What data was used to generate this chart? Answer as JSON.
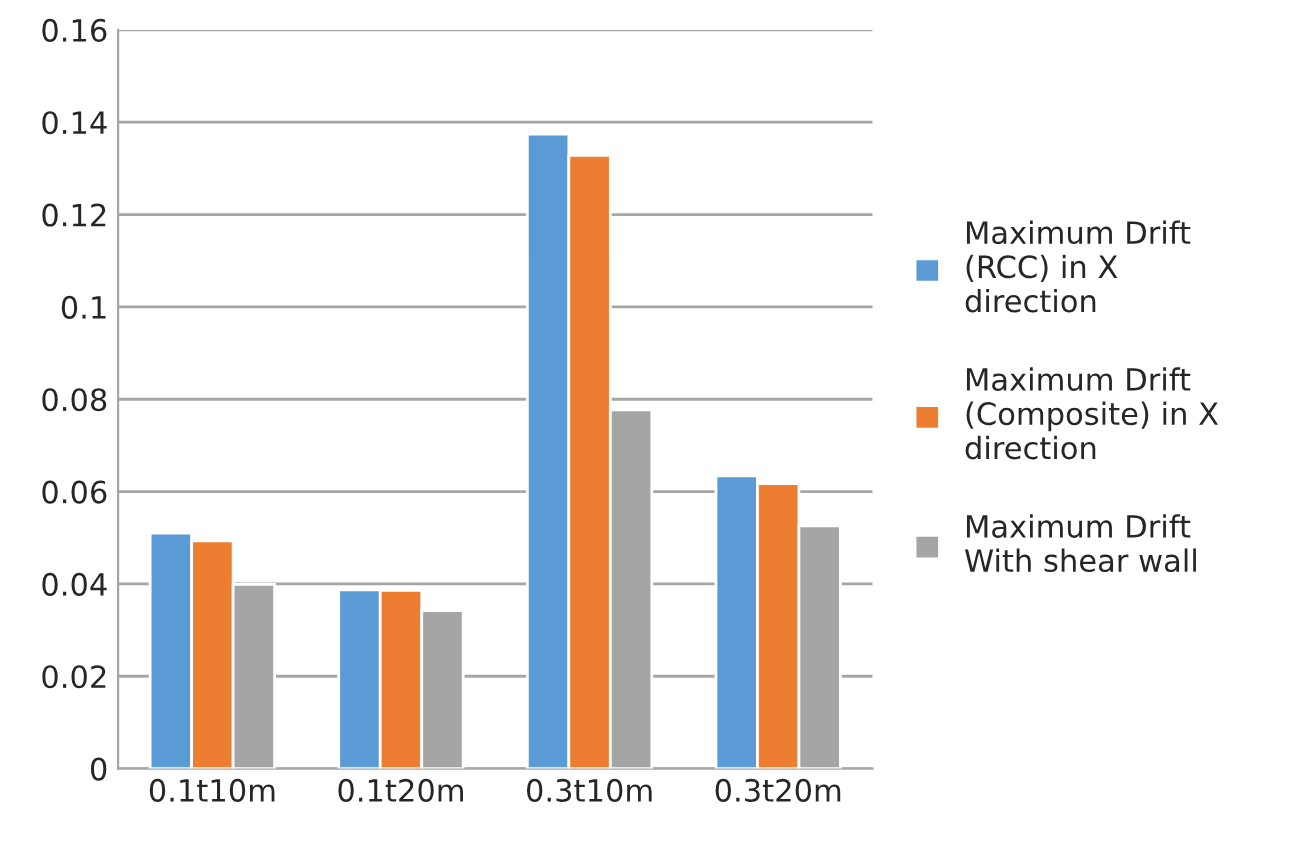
{
  "chart_data": {
    "type": "bar",
    "categories": [
      "0.1t10m",
      "0.1t20m",
      "0.3t10m",
      "0.3t20m"
    ],
    "series": [
      {
        "name": "Maximum Drift\n(RCC) in X\ndirection",
        "color": "#5b9bd5",
        "values": [
          0.051,
          0.0387,
          0.1374,
          0.0634
        ]
      },
      {
        "name": "Maximum Drift\n(Composite) in X\ndirection",
        "color": "#ed7d31",
        "values": [
          0.0493,
          0.0386,
          0.1328,
          0.0617
        ]
      },
      {
        "name": "Maximum Drift\nWith shear wall",
        "color": "#a5a5a5",
        "values": [
          0.0399,
          0.0342,
          0.0777,
          0.0526
        ]
      }
    ],
    "ylim": [
      0,
      0.16
    ],
    "yticks": [
      0,
      0.02,
      0.04,
      0.06,
      0.08,
      0.1,
      0.12,
      0.14,
      0.16
    ],
    "grid": "y",
    "legend": "right"
  }
}
